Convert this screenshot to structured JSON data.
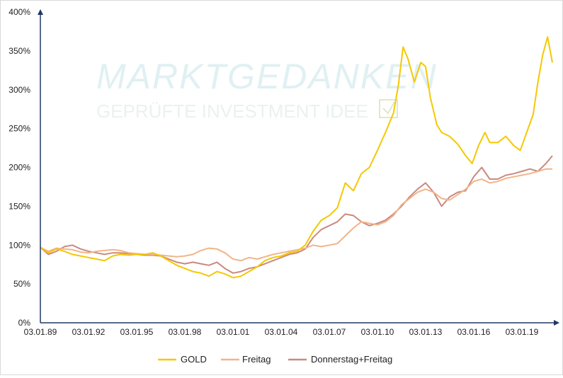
{
  "watermark": {
    "brand": "MARKTGEDANKEN",
    "tagline": "GEPRÜFTE INVESTMENT IDEE"
  },
  "chart_data": {
    "type": "line",
    "title": "",
    "xlabel": "",
    "ylabel": "",
    "ylim": [
      0,
      400
    ],
    "y_ticks": [
      "0%",
      "50%",
      "100%",
      "150%",
      "200%",
      "250%",
      "300%",
      "350%",
      "400%"
    ],
    "x_ticks": [
      "03.01.89",
      "03.01.92",
      "03.01.95",
      "03.01.98",
      "03.01.01",
      "03.01.04",
      "03.01.07",
      "03.01.10",
      "03.01.13",
      "03.01.16",
      "03.01.19"
    ],
    "xlim": [
      1989.0,
      2020.9
    ],
    "grid": false,
    "legend": "bottom",
    "colors": {
      "GOLD": "#f5c800",
      "Freitag": "#f2b48a",
      "Donnerstag+Freitag": "#c98a80"
    },
    "series": [
      {
        "name": "GOLD",
        "points": [
          [
            1989.0,
            97
          ],
          [
            1989.5,
            90
          ],
          [
            1990.0,
            95
          ],
          [
            1990.5,
            92
          ],
          [
            1991.0,
            88
          ],
          [
            1991.5,
            86
          ],
          [
            1992.0,
            84
          ],
          [
            1992.5,
            82
          ],
          [
            1993.0,
            80
          ],
          [
            1993.5,
            86
          ],
          [
            1994.0,
            88
          ],
          [
            1994.5,
            87
          ],
          [
            1995.0,
            88
          ],
          [
            1995.5,
            88
          ],
          [
            1996.0,
            90
          ],
          [
            1996.5,
            86
          ],
          [
            1997.0,
            80
          ],
          [
            1997.5,
            74
          ],
          [
            1998.0,
            70
          ],
          [
            1998.5,
            66
          ],
          [
            1999.0,
            64
          ],
          [
            1999.5,
            60
          ],
          [
            2000.0,
            66
          ],
          [
            2000.5,
            63
          ],
          [
            2001.0,
            58
          ],
          [
            2001.5,
            60
          ],
          [
            2002.0,
            66
          ],
          [
            2002.5,
            72
          ],
          [
            2003.0,
            80
          ],
          [
            2003.5,
            84
          ],
          [
            2004.0,
            86
          ],
          [
            2004.5,
            90
          ],
          [
            2005.0,
            92
          ],
          [
            2005.5,
            100
          ],
          [
            2006.0,
            118
          ],
          [
            2006.5,
            132
          ],
          [
            2007.0,
            138
          ],
          [
            2007.5,
            148
          ],
          [
            2008.0,
            180
          ],
          [
            2008.5,
            170
          ],
          [
            2009.0,
            192
          ],
          [
            2009.5,
            200
          ],
          [
            2010.0,
            222
          ],
          [
            2010.5,
            245
          ],
          [
            2011.0,
            270
          ],
          [
            2011.3,
            305
          ],
          [
            2011.6,
            355
          ],
          [
            2011.9,
            340
          ],
          [
            2012.3,
            310
          ],
          [
            2012.7,
            335
          ],
          [
            2013.0,
            330
          ],
          [
            2013.3,
            290
          ],
          [
            2013.7,
            255
          ],
          [
            2014.0,
            245
          ],
          [
            2014.5,
            240
          ],
          [
            2015.0,
            230
          ],
          [
            2015.5,
            215
          ],
          [
            2015.9,
            205
          ],
          [
            2016.3,
            228
          ],
          [
            2016.7,
            245
          ],
          [
            2017.0,
            232
          ],
          [
            2017.5,
            232
          ],
          [
            2018.0,
            240
          ],
          [
            2018.5,
            228
          ],
          [
            2018.9,
            222
          ],
          [
            2019.3,
            245
          ],
          [
            2019.7,
            268
          ],
          [
            2020.0,
            310
          ],
          [
            2020.3,
            345
          ],
          [
            2020.6,
            368
          ],
          [
            2020.9,
            335
          ]
        ]
      },
      {
        "name": "Freitag",
        "points": [
          [
            1989.0,
            97
          ],
          [
            1989.5,
            92
          ],
          [
            1990.0,
            96
          ],
          [
            1990.5,
            95
          ],
          [
            1991.0,
            94
          ],
          [
            1991.5,
            91
          ],
          [
            1992.0,
            90
          ],
          [
            1992.5,
            92
          ],
          [
            1993.0,
            93
          ],
          [
            1993.5,
            94
          ],
          [
            1994.0,
            93
          ],
          [
            1994.5,
            90
          ],
          [
            1995.0,
            89
          ],
          [
            1995.5,
            88
          ],
          [
            1996.0,
            88
          ],
          [
            1996.5,
            87
          ],
          [
            1997.0,
            86
          ],
          [
            1997.5,
            85
          ],
          [
            1998.0,
            86
          ],
          [
            1998.5,
            88
          ],
          [
            1999.0,
            93
          ],
          [
            1999.5,
            96
          ],
          [
            2000.0,
            95
          ],
          [
            2000.5,
            90
          ],
          [
            2001.0,
            82
          ],
          [
            2001.5,
            80
          ],
          [
            2002.0,
            84
          ],
          [
            2002.5,
            82
          ],
          [
            2003.0,
            85
          ],
          [
            2003.5,
            88
          ],
          [
            2004.0,
            90
          ],
          [
            2004.5,
            92
          ],
          [
            2005.0,
            94
          ],
          [
            2005.5,
            96
          ],
          [
            2006.0,
            100
          ],
          [
            2006.5,
            98
          ],
          [
            2007.0,
            100
          ],
          [
            2007.5,
            102
          ],
          [
            2008.0,
            112
          ],
          [
            2008.5,
            122
          ],
          [
            2009.0,
            130
          ],
          [
            2009.5,
            128
          ],
          [
            2010.0,
            126
          ],
          [
            2010.5,
            130
          ],
          [
            2011.0,
            138
          ],
          [
            2011.5,
            152
          ],
          [
            2012.0,
            160
          ],
          [
            2012.5,
            168
          ],
          [
            2013.0,
            172
          ],
          [
            2013.5,
            168
          ],
          [
            2014.0,
            160
          ],
          [
            2014.5,
            158
          ],
          [
            2015.0,
            165
          ],
          [
            2015.5,
            172
          ],
          [
            2016.0,
            182
          ],
          [
            2016.5,
            185
          ],
          [
            2017.0,
            180
          ],
          [
            2017.5,
            182
          ],
          [
            2018.0,
            186
          ],
          [
            2018.5,
            188
          ],
          [
            2019.0,
            190
          ],
          [
            2019.5,
            192
          ],
          [
            2020.0,
            195
          ],
          [
            2020.5,
            198
          ],
          [
            2020.9,
            198
          ]
        ]
      },
      {
        "name": "Donnerstag+Freitag",
        "points": [
          [
            1989.0,
            97
          ],
          [
            1989.5,
            88
          ],
          [
            1990.0,
            92
          ],
          [
            1990.5,
            98
          ],
          [
            1991.0,
            100
          ],
          [
            1991.5,
            95
          ],
          [
            1992.0,
            92
          ],
          [
            1992.5,
            90
          ],
          [
            1993.0,
            88
          ],
          [
            1993.5,
            90
          ],
          [
            1994.0,
            90
          ],
          [
            1994.5,
            89
          ],
          [
            1995.0,
            88
          ],
          [
            1995.5,
            87
          ],
          [
            1996.0,
            87
          ],
          [
            1996.5,
            86
          ],
          [
            1997.0,
            82
          ],
          [
            1997.5,
            78
          ],
          [
            1998.0,
            76
          ],
          [
            1998.5,
            78
          ],
          [
            1999.0,
            76
          ],
          [
            1999.5,
            74
          ],
          [
            2000.0,
            78
          ],
          [
            2000.5,
            70
          ],
          [
            2001.0,
            64
          ],
          [
            2001.5,
            66
          ],
          [
            2002.0,
            70
          ],
          [
            2002.5,
            72
          ],
          [
            2003.0,
            76
          ],
          [
            2003.5,
            80
          ],
          [
            2004.0,
            84
          ],
          [
            2004.5,
            88
          ],
          [
            2005.0,
            90
          ],
          [
            2005.5,
            95
          ],
          [
            2006.0,
            110
          ],
          [
            2006.5,
            120
          ],
          [
            2007.0,
            125
          ],
          [
            2007.5,
            130
          ],
          [
            2008.0,
            140
          ],
          [
            2008.5,
            138
          ],
          [
            2009.0,
            130
          ],
          [
            2009.5,
            125
          ],
          [
            2010.0,
            128
          ],
          [
            2010.5,
            132
          ],
          [
            2011.0,
            140
          ],
          [
            2011.5,
            150
          ],
          [
            2012.0,
            162
          ],
          [
            2012.5,
            172
          ],
          [
            2013.0,
            180
          ],
          [
            2013.5,
            168
          ],
          [
            2014.0,
            150
          ],
          [
            2014.5,
            162
          ],
          [
            2015.0,
            168
          ],
          [
            2015.5,
            170
          ],
          [
            2016.0,
            188
          ],
          [
            2016.5,
            200
          ],
          [
            2017.0,
            185
          ],
          [
            2017.5,
            185
          ],
          [
            2018.0,
            190
          ],
          [
            2018.5,
            192
          ],
          [
            2019.0,
            195
          ],
          [
            2019.5,
            198
          ],
          [
            2020.0,
            195
          ],
          [
            2020.5,
            205
          ],
          [
            2020.9,
            215
          ]
        ]
      }
    ]
  }
}
